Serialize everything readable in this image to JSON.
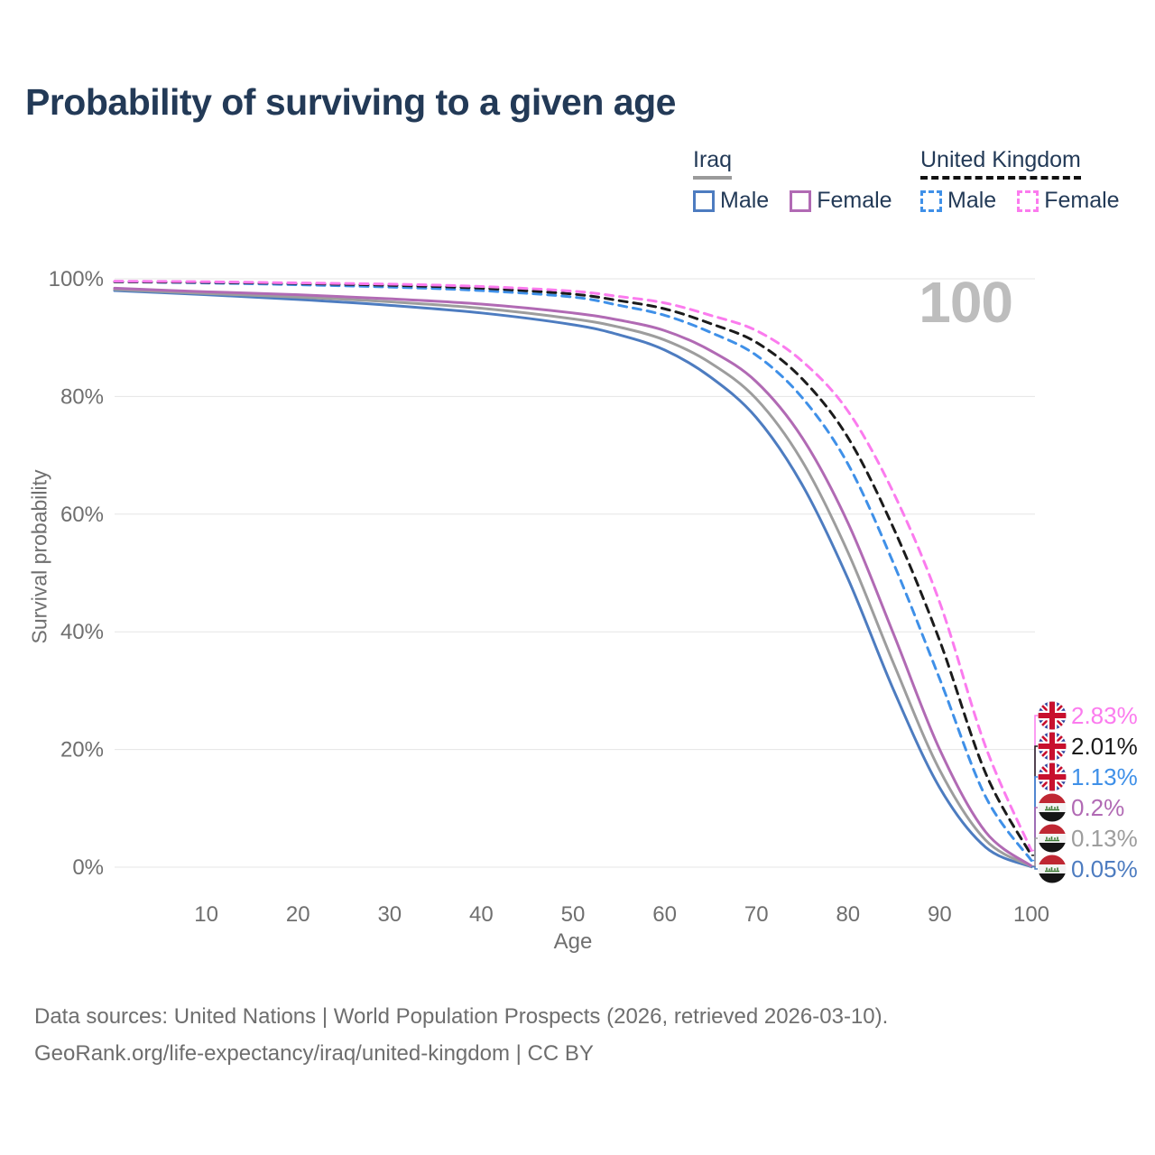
{
  "title": "Probability of surviving to a given age",
  "age_indicator": "100",
  "legend": {
    "groups": [
      {
        "country": "Iraq",
        "underline_style": "solid",
        "underline_color": "#9a9a9a",
        "items": [
          {
            "label": "Male",
            "color": "#4d7cc0",
            "dashed": false
          },
          {
            "label": "Female",
            "color": "#b16ab4",
            "dashed": false
          }
        ]
      },
      {
        "country": "United Kingdom",
        "underline_style": "dashed",
        "underline_color": "#111111",
        "items": [
          {
            "label": "Male",
            "color": "#3f90e8",
            "dashed": true
          },
          {
            "label": "Female",
            "color": "#fb7bee",
            "dashed": true
          }
        ]
      }
    ]
  },
  "chart_data": {
    "type": "line",
    "title": "Probability of surviving to a given age",
    "xlabel": "Age",
    "ylabel": "Survival probability",
    "xlim": [
      0,
      100
    ],
    "ylim": [
      0,
      100
    ],
    "grid": true,
    "legend_position": "top-right",
    "x_ticks": [
      "10",
      "20",
      "30",
      "40",
      "50",
      "60",
      "70",
      "80",
      "90",
      "100"
    ],
    "x_tick_values": [
      10,
      20,
      30,
      40,
      50,
      60,
      70,
      80,
      90,
      100
    ],
    "y_ticks": [
      "0%",
      "20%",
      "40%",
      "60%",
      "80%",
      "100%"
    ],
    "y_tick_values": [
      0,
      20,
      40,
      60,
      80,
      100
    ],
    "x": [
      0,
      10,
      20,
      30,
      40,
      50,
      55,
      60,
      65,
      70,
      75,
      80,
      85,
      90,
      95,
      100
    ],
    "series": [
      {
        "key": "uk_female",
        "name": "United Kingdom – Female",
        "color": "#fb7bee",
        "dashed": true,
        "values": [
          99.6,
          99.5,
          99.3,
          99.1,
          98.7,
          97.9,
          97.0,
          95.9,
          93.8,
          91.2,
          86.0,
          77.5,
          63.5,
          45.0,
          20.5,
          2.83
        ]
      },
      {
        "key": "uk_both",
        "name": "United Kingdom – Both sexes",
        "color": "#1b1b1b",
        "dashed": true,
        "values": [
          99.5,
          99.4,
          99.2,
          98.9,
          98.4,
          97.4,
          96.3,
          94.9,
          92.4,
          89.2,
          83.0,
          73.0,
          57.5,
          38.5,
          16.0,
          2.01
        ]
      },
      {
        "key": "uk_male",
        "name": "United Kingdom – Male",
        "color": "#3f90e8",
        "dashed": true,
        "values": [
          99.5,
          99.3,
          99.0,
          98.6,
          98.0,
          96.9,
          95.5,
          93.8,
          90.9,
          87.0,
          79.8,
          68.5,
          51.5,
          32.0,
          12.0,
          1.13
        ]
      },
      {
        "key": "iraq_female",
        "name": "Iraq – Female",
        "color": "#b16ab4",
        "dashed": false,
        "values": [
          98.4,
          97.8,
          97.3,
          96.6,
          95.7,
          94.2,
          93.0,
          91.2,
          87.8,
          82.5,
          73.0,
          58.5,
          39.5,
          20.0,
          6.0,
          0.2
        ]
      },
      {
        "key": "iraq_both",
        "name": "Iraq – Both sexes",
        "color": "#9d9d9d",
        "dashed": false,
        "values": [
          98.2,
          97.5,
          96.9,
          96.1,
          95.0,
          93.2,
          91.8,
          89.6,
          85.7,
          79.6,
          69.0,
          53.5,
          34.5,
          16.5,
          4.6,
          0.13
        ]
      },
      {
        "key": "iraq_male",
        "name": "Iraq – Male",
        "color": "#4d7cc0",
        "dashed": false,
        "values": [
          98.0,
          97.3,
          96.5,
          95.5,
          94.2,
          92.2,
          90.5,
          87.9,
          83.3,
          76.4,
          65.0,
          49.0,
          30.0,
          13.5,
          3.4,
          0.05
        ]
      }
    ],
    "end_labels": [
      {
        "series": "uk_female",
        "flag": "uk",
        "value": "2.83%",
        "value_num": 2.83,
        "color": "#fb7bee"
      },
      {
        "series": "uk_both",
        "flag": "uk",
        "value": "2.01%",
        "value_num": 2.01,
        "color": "#1b1b1b"
      },
      {
        "series": "uk_male",
        "flag": "uk",
        "value": "1.13%",
        "value_num": 1.13,
        "color": "#3f90e8"
      },
      {
        "series": "iraq_female",
        "flag": "iraq",
        "value": "0.2%",
        "value_num": 0.2,
        "color": "#b16ab4"
      },
      {
        "series": "iraq_both",
        "flag": "iraq",
        "value": "0.13%",
        "value_num": 0.13,
        "color": "#9d9d9d"
      },
      {
        "series": "iraq_male",
        "flag": "iraq",
        "value": "0.05%",
        "value_num": 0.05,
        "color": "#4d7cc0"
      }
    ]
  },
  "footer": {
    "line1": "Data sources: United Nations | World Population Prospects (2026, retrieved 2026-03-10).",
    "line2": "GeoRank.org/life-expectancy/iraq/united-kingdom | CC BY"
  }
}
